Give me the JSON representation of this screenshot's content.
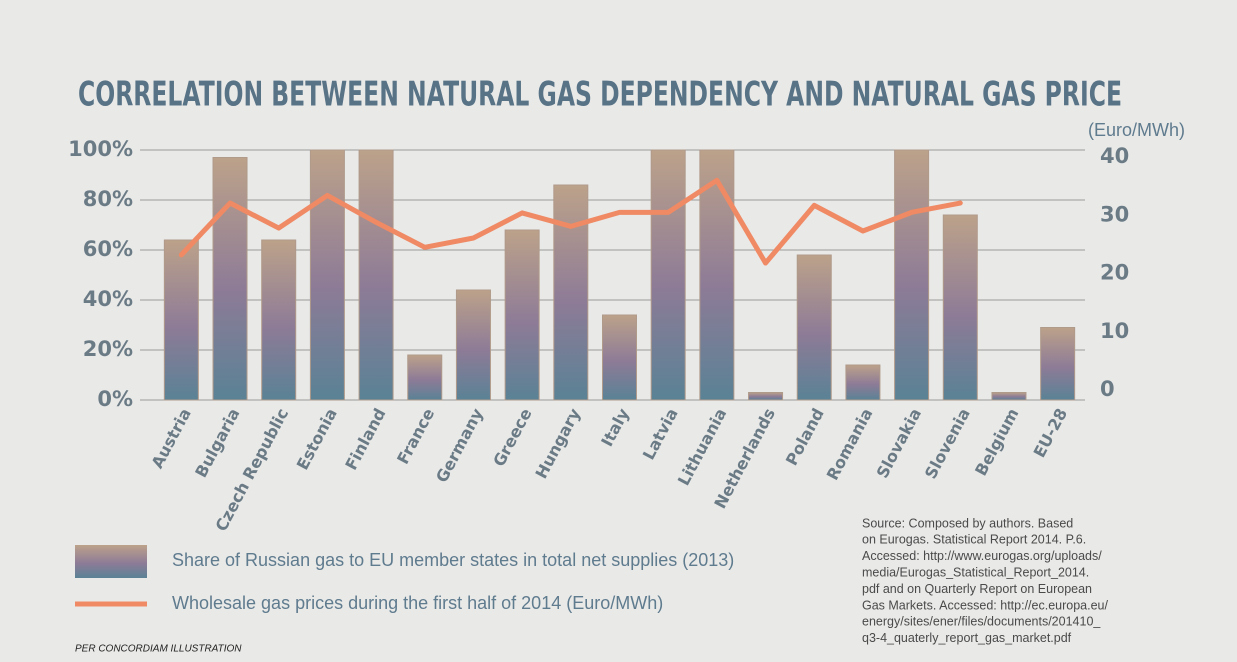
{
  "chart_data": {
    "type": "bar_line",
    "title": "CORRELATION BETWEEN NATURAL GAS DEPENDENCY AND NATURAL GAS PRICE",
    "y2_label": "(Euro/MWh)",
    "categories": [
      "Austria",
      "Bulgaria",
      "Czech Republic",
      "Estonia",
      "Finland",
      "France",
      "Germany",
      "Greece",
      "Hungary",
      "Italy",
      "Latvia",
      "Lithuania",
      "Netherlands",
      "Poland",
      "Romania",
      "Slovakia",
      "Slovenia",
      "Belgium",
      "EU-28"
    ],
    "series": [
      {
        "name": "Share of Russian gas to EU member states in total net supplies (2013)",
        "color": "#8d7b97",
        "values": [
          64,
          97,
          64,
          100,
          100,
          18,
          44,
          68,
          86,
          34,
          100,
          100,
          3,
          58,
          14,
          100,
          74,
          3,
          29
        ]
      },
      {
        "name": "Wholesale gas prices during the first half of 2014 (Euro/MWh)",
        "color": "#ef8a64",
        "axis": "y2",
        "values": [
          23.2,
          32.1,
          27.8,
          33.4,
          28.8,
          24.5,
          26.1,
          30.4,
          28.1,
          30.5,
          30.5,
          36,
          21.8,
          31.7,
          27.3,
          30.5,
          32.1,
          null,
          null
        ]
      }
    ],
    "ylim": [
      0,
      100
    ],
    "yticks": [
      {
        "value": 0,
        "label": "0%"
      },
      {
        "value": 20,
        "label": "20%"
      },
      {
        "value": 40,
        "label": "40%"
      },
      {
        "value": 60,
        "label": "60%"
      },
      {
        "value": 80,
        "label": "80%"
      },
      {
        "value": 100,
        "label": "100%"
      }
    ],
    "y2lim": [
      -1.7,
      41.2
    ],
    "y2ticks": [
      0,
      10,
      20,
      30,
      40
    ],
    "grid": true,
    "source": [
      "Source: Composed by authors. Based",
      "on Eurogas. Statistical Report 2014. P.6.",
      "Accessed: http://www.eurogas.org/uploads/",
      "media/Eurogas_Statistical_Report_2014.",
      "pdf and on Quarterly Report on European",
      "Gas Markets. Accessed: http://ec.europa.eu/",
      "energy/sites/ener/files/documents/201410_",
      "q3-4_quaterly_report_gas_market.pdf"
    ],
    "credit": "PER CONCORDIAM ILLUSTRATION"
  }
}
